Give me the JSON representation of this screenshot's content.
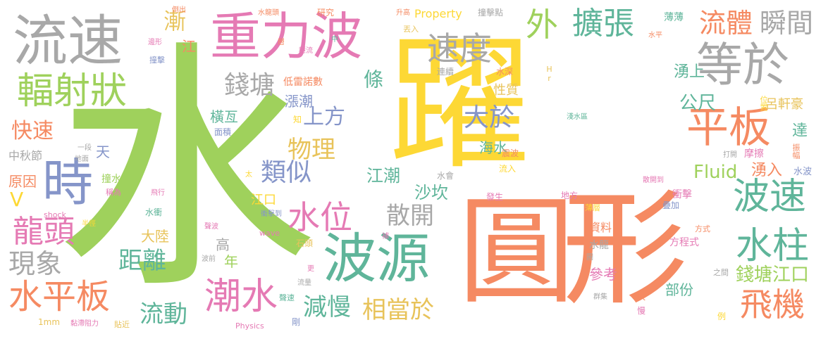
{
  "colors": {
    "green": "#9fd15c",
    "yellow": "#fdd835",
    "orange": "#f58a62",
    "pink": "#e57ab4",
    "gray": "#a8a8a8",
    "teal": "#5fb59a",
    "blue": "#8595c9",
    "gold": "#e8c35a"
  },
  "words": [
    {
      "text": "水"
    },
    {
      "text": "躍"
    },
    {
      "text": "圓"
    },
    {
      "text": "形"
    },
    {
      "text": "重力波"
    },
    {
      "text": "波源"
    },
    {
      "text": "流速"
    },
    {
      "text": "等於"
    },
    {
      "text": "輻射狀"
    },
    {
      "text": "平板"
    },
    {
      "text": "擴張"
    },
    {
      "text": "速度"
    },
    {
      "text": "時"
    },
    {
      "text": "流體"
    },
    {
      "text": "瞬間"
    },
    {
      "text": "水柱"
    },
    {
      "text": "波速"
    },
    {
      "text": "飛機"
    },
    {
      "text": "水平板"
    },
    {
      "text": "潮水"
    },
    {
      "text": "水位"
    },
    {
      "text": "龍頭"
    },
    {
      "text": "錢塘"
    },
    {
      "text": "上方"
    },
    {
      "text": "大於"
    },
    {
      "text": "外"
    },
    {
      "text": "類似"
    },
    {
      "text": "物理"
    },
    {
      "text": "散開"
    },
    {
      "text": "距離"
    },
    {
      "text": "流動"
    },
    {
      "text": "減慢"
    },
    {
      "text": "相當於"
    },
    {
      "text": "現象"
    },
    {
      "text": "快速"
    },
    {
      "text": "漸"
    },
    {
      "text": "Fluid"
    },
    {
      "text": "湧入"
    },
    {
      "text": "錢塘江口"
    },
    {
      "text": "湧上"
    },
    {
      "text": "公尺"
    },
    {
      "text": "呂軒豪"
    },
    {
      "text": "性質"
    },
    {
      "text": "條"
    },
    {
      "text": "漲潮"
    },
    {
      "text": "江潮"
    },
    {
      "text": "沙坎"
    },
    {
      "text": "海水"
    },
    {
      "text": "原因"
    },
    {
      "text": "V"
    },
    {
      "text": "中秋節"
    },
    {
      "text": "天"
    },
    {
      "text": "江口"
    },
    {
      "text": "大陸"
    },
    {
      "text": "高"
    },
    {
      "text": "年"
    },
    {
      "text": "橫亙"
    },
    {
      "text": "面積"
    },
    {
      "text": "低雷諾數"
    },
    {
      "text": "撞水"
    },
    {
      "text": "稱為"
    },
    {
      "text": "江"
    },
    {
      "text": "部份"
    },
    {
      "text": "參考"
    },
    {
      "text": "資料"
    },
    {
      "text": "方程式"
    },
    {
      "text": "水龍"
    },
    {
      "text": "摩擦"
    },
    {
      "text": "振幅"
    },
    {
      "text": "位置"
    },
    {
      "text": "達"
    },
    {
      "text": "薄薄"
    },
    {
      "text": "薄層"
    },
    {
      "text": "疊加"
    },
    {
      "text": "衝擊"
    },
    {
      "text": "水波"
    },
    {
      "text": "打開"
    },
    {
      "text": "散開到"
    },
    {
      "text": "地方"
    },
    {
      "text": "震波"
    },
    {
      "text": "流入"
    },
    {
      "text": "發生"
    },
    {
      "text": "水會"
    },
    {
      "text": "淺水區"
    },
    {
      "text": "連續"
    },
    {
      "text": "水深"
    },
    {
      "text": "水平"
    },
    {
      "text": "升高"
    },
    {
      "text": "Property"
    },
    {
      "text": "撞擊點"
    },
    {
      "text": "丟入"
    },
    {
      "text": "研究"
    },
    {
      "text": "水龍頭"
    },
    {
      "text": "倒出"
    },
    {
      "text": "邊形"
    },
    {
      "text": "撞擊"
    },
    {
      "text": "層"
    },
    {
      "text": "穩流"
    },
    {
      "text": "中"
    },
    {
      "text": "一段"
    },
    {
      "text": "地面"
    },
    {
      "text": "飛行"
    },
    {
      "text": "太"
    },
    {
      "text": "水衝"
    },
    {
      "text": "shock"
    },
    {
      "text": "半徑"
    },
    {
      "text": "聲波"
    },
    {
      "text": "衝擊到"
    },
    {
      "text": "wave"
    },
    {
      "text": "石頭"
    },
    {
      "text": "波前"
    },
    {
      "text": "流量"
    },
    {
      "text": "聲速"
    },
    {
      "text": "更"
    },
    {
      "text": "1mm"
    },
    {
      "text": "黏滯阻力"
    },
    {
      "text": "貼近"
    },
    {
      "text": "Physics"
    },
    {
      "text": "剛"
    },
    {
      "text": "快"
    },
    {
      "text": "慢"
    },
    {
      "text": "群集"
    },
    {
      "text": "例"
    },
    {
      "text": "之間"
    },
    {
      "text": "方式"
    },
    {
      "text": "知"
    },
    {
      "text": "Hr"
    },
    {
      "text": "圖"
    },
    {
      "text": "補"
    }
  ]
}
